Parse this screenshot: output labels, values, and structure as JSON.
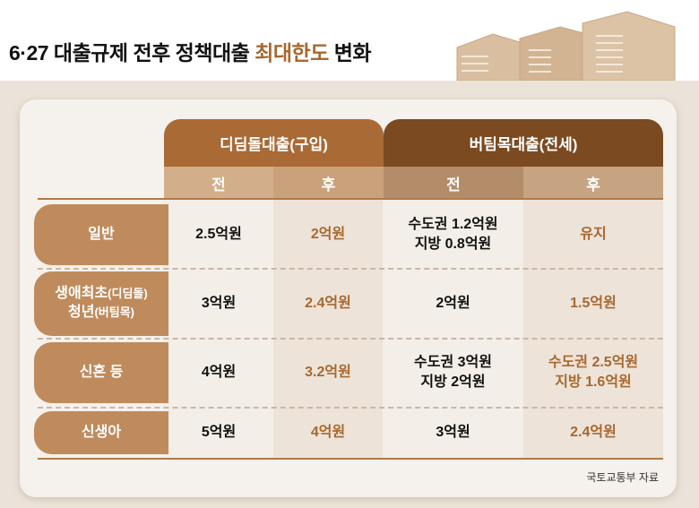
{
  "title": {
    "prefix": "6·27 대출규제 전후 정책대출 ",
    "highlight": "최대한도",
    "suffix": " 변화"
  },
  "groups": [
    {
      "label": "디딤돌대출(구입)"
    },
    {
      "label": "버팀목대출(전세)"
    }
  ],
  "subheaders": [
    "전",
    "후",
    "전",
    "후"
  ],
  "rows": [
    {
      "label": "일반",
      "label2": "",
      "cells": [
        [
          "2.5억원"
        ],
        [
          "2억원"
        ],
        [
          "수도권 1.2억원",
          "지방 0.8억원"
        ],
        [
          "유지"
        ]
      ]
    },
    {
      "label": "생애최초",
      "label_note": "(디딤돌)",
      "label2": "청년",
      "label2_note": "(버팀목)",
      "cells": [
        [
          "3억원"
        ],
        [
          "2.4억원"
        ],
        [
          "2억원"
        ],
        [
          "1.5억원"
        ]
      ]
    },
    {
      "label": "신혼 등",
      "label2": "",
      "cells": [
        [
          "4억원"
        ],
        [
          "3.2억원"
        ],
        [
          "수도권 3억원",
          "지방 2억원"
        ],
        [
          "수도권 2.5억원",
          "지방 1.6억원"
        ]
      ]
    },
    {
      "label": "신생아",
      "label2": "",
      "cells": [
        [
          "5억원"
        ],
        [
          "4억원"
        ],
        [
          "3억원"
        ],
        [
          "2.4억원"
        ]
      ]
    }
  ],
  "source": "국토교통부 자료",
  "colors": {
    "accent": "#a8682f",
    "group1": "#a96a35",
    "group2": "#7b4a21",
    "row_label": "#bf8b5c"
  }
}
